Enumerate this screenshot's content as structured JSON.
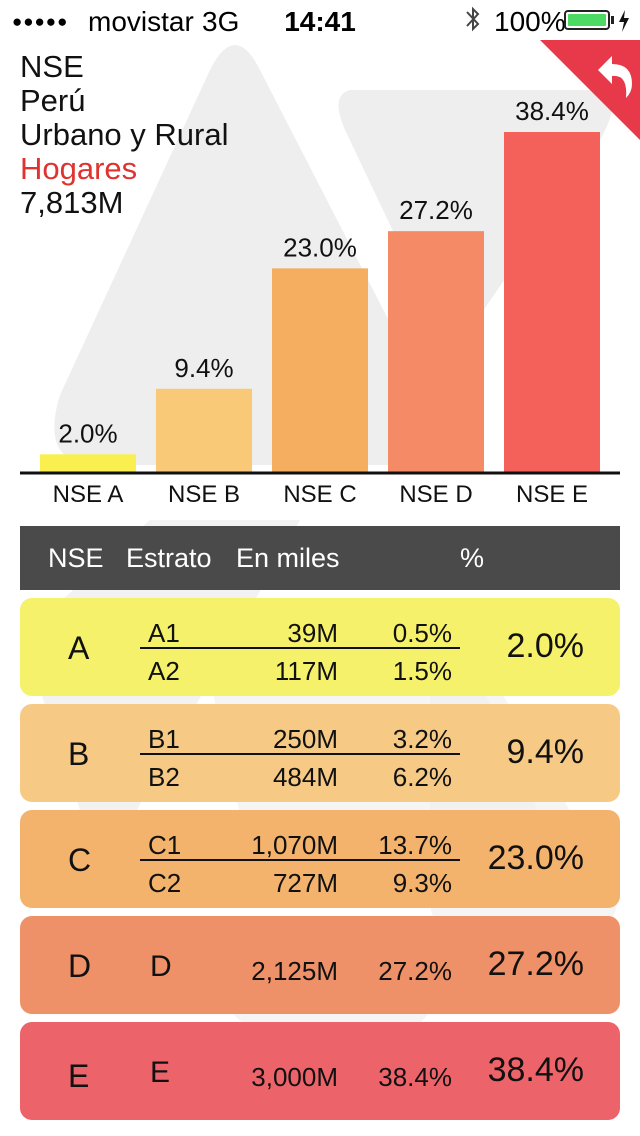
{
  "status_bar": {
    "signal": "●●●●●",
    "carrier": "movistar",
    "network": "3G",
    "time": "14:41",
    "battery_percent": "100%"
  },
  "header": {
    "line1": "NSE",
    "line2": "Perú",
    "line3": "Urbano y Rural",
    "line4": "Hogares",
    "line5": "7,813M"
  },
  "chart_data": {
    "type": "bar",
    "categories": [
      "NSE A",
      "NSE B",
      "NSE C",
      "NSE D",
      "NSE E"
    ],
    "values": [
      2.0,
      9.4,
      23.0,
      27.2,
      38.4
    ],
    "value_labels": [
      "2.0%",
      "9.4%",
      "23.0%",
      "27.2%",
      "38.4%"
    ],
    "colors": [
      "#f9ef4f",
      "#f9c977",
      "#f5ae5f",
      "#f58a66",
      "#f4605a"
    ],
    "ylim": [
      0,
      38.4
    ]
  },
  "table": {
    "headers": {
      "nse": "NSE",
      "estrato": "Estrato",
      "miles": "En miles",
      "pct": "%"
    },
    "rows": [
      {
        "nse": "A",
        "color": "#f6f16a",
        "total": "2.0%",
        "strata": [
          {
            "name": "A1",
            "value": "39M",
            "pct": "0.5%"
          },
          {
            "name": "A2",
            "value": "117M",
            "pct": "1.5%"
          }
        ]
      },
      {
        "nse": "B",
        "color": "#f6c985",
        "total": "9.4%",
        "strata": [
          {
            "name": "B1",
            "value": "250M",
            "pct": "3.2%"
          },
          {
            "name": "B2",
            "value": "484M",
            "pct": "6.2%"
          }
        ]
      },
      {
        "nse": "C",
        "color": "#f3b36d",
        "total": "23.0%",
        "strata": [
          {
            "name": "C1",
            "value": "1,070M",
            "pct": "13.7%"
          },
          {
            "name": "C2",
            "value": "727M",
            "pct": "9.3%"
          }
        ]
      },
      {
        "nse": "D",
        "color": "#ee9068",
        "total": "27.2%",
        "strata": [
          {
            "name": "D",
            "value": "2,125M",
            "pct": "27.2%"
          }
        ]
      },
      {
        "nse": "E",
        "color": "#ec636a",
        "total": "38.4%",
        "strata": [
          {
            "name": "E",
            "value": "3,000M",
            "pct": "38.4%"
          }
        ]
      }
    ]
  },
  "icons": {
    "back": "back-arrow-icon",
    "bluetooth": "bluetooth-icon",
    "battery": "battery-icon",
    "charging": "charging-bolt-icon"
  }
}
